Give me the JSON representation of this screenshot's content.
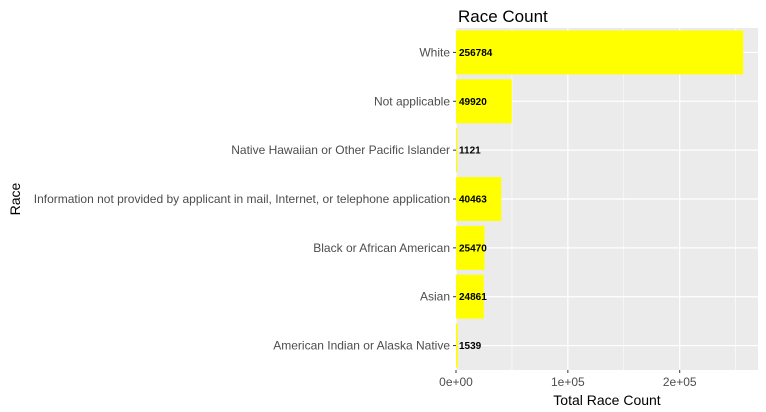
{
  "chart_data": {
    "type": "bar",
    "orientation": "horizontal",
    "title": "Race Count",
    "xlabel": "Total Race Count",
    "ylabel": "Race",
    "categories": [
      "White",
      "Not applicable",
      "Native Hawaiian or Other Pacific Islander",
      "Information not provided by applicant in mail, Internet, or telephone application",
      "Black or African American",
      "Asian",
      "American Indian or Alaska Native"
    ],
    "values": [
      256784,
      49920,
      1121,
      40463,
      25470,
      24861,
      1539
    ],
    "value_labels": [
      "256784",
      "49920",
      "1121",
      "40463",
      "25470",
      "24861",
      "1539"
    ],
    "xlim": [
      0,
      270000
    ],
    "xticks": [
      0,
      100000,
      200000
    ],
    "xtick_labels": [
      "0e+00",
      "1e+05",
      "2e+05"
    ],
    "bar_color": "#ffff00",
    "panel_color": "#ebebeb",
    "grid_color": "#ffffff",
    "grid": true,
    "legend": "none"
  }
}
